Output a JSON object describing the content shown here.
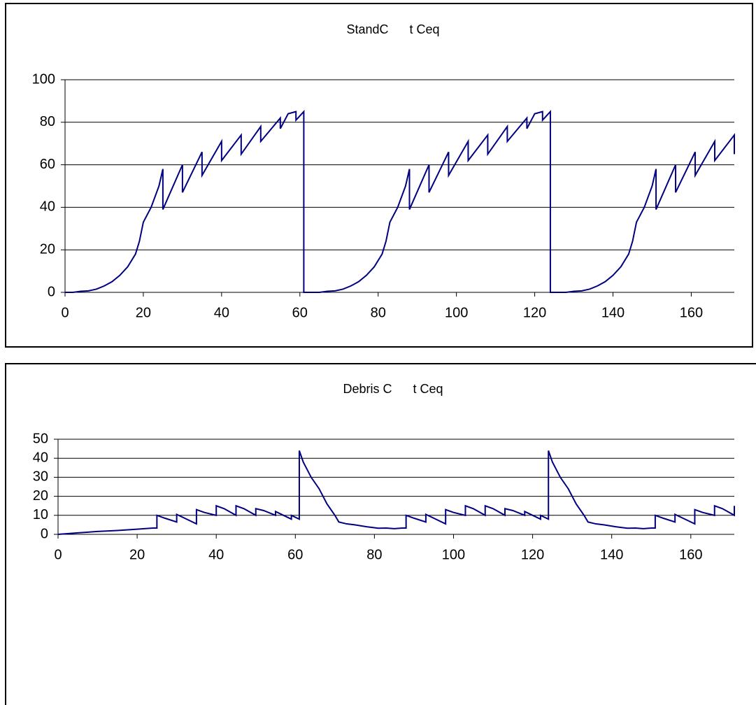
{
  "chart_data": [
    {
      "type": "line",
      "title": "StandC      t Ceq",
      "color": "#000080",
      "grid": true,
      "xlim": [
        0,
        171
      ],
      "ylim": [
        0,
        100
      ],
      "xticks": [
        0,
        20,
        40,
        60,
        80,
        100,
        120,
        140,
        160
      ],
      "yticks": [
        0,
        20,
        40,
        60,
        80,
        100
      ],
      "x": [
        0,
        2,
        4,
        6,
        8,
        10,
        12,
        14,
        16,
        18,
        19,
        20,
        22,
        24,
        25,
        25,
        30,
        30,
        35,
        35,
        40,
        40,
        45,
        45,
        50,
        50,
        55,
        55,
        57,
        59,
        59,
        61,
        61,
        63,
        65,
        67,
        69,
        71,
        73,
        75,
        77,
        79,
        81,
        82,
        83,
        85,
        87,
        88,
        88,
        93,
        93,
        98,
        98,
        103,
        103,
        108,
        108,
        113,
        113,
        118,
        118,
        120,
        122,
        122,
        124,
        124,
        126,
        128,
        130,
        132,
        134,
        136,
        138,
        140,
        142,
        144,
        145,
        146,
        148,
        150,
        151,
        151,
        156,
        156,
        161,
        161,
        166,
        166,
        171,
        171
      ],
      "values": [
        0,
        0,
        0.5,
        0.7,
        1.5,
        3,
        5,
        8,
        12,
        18,
        24,
        33,
        40,
        50,
        58,
        39,
        60,
        47,
        66,
        55,
        71,
        62,
        74,
        65,
        78,
        71,
        82,
        77,
        84,
        85,
        81,
        85,
        0,
        0,
        0,
        0.5,
        0.7,
        1.5,
        3,
        5,
        8,
        12,
        18,
        24,
        33,
        40,
        50,
        58,
        39,
        60,
        47,
        66,
        55,
        71,
        62,
        74,
        65,
        78,
        71,
        82,
        77,
        84,
        85,
        81,
        85,
        0,
        0,
        0,
        0.5,
        0.7,
        1.5,
        3,
        5,
        8,
        12,
        18,
        24,
        33,
        40,
        50,
        58,
        39,
        60,
        47,
        66,
        55,
        71,
        62,
        74,
        65
      ]
    },
    {
      "type": "line",
      "title": "Debris C      t Ceq",
      "color": "#000080",
      "grid": true,
      "xlim": [
        0,
        171
      ],
      "ylim": [
        0,
        50
      ],
      "xticks": [
        0,
        20,
        40,
        60,
        80,
        100,
        120,
        140,
        160
      ],
      "yticks": [
        0,
        10,
        20,
        30,
        40,
        50
      ],
      "x": [
        0,
        5,
        10,
        15,
        20,
        24,
        25,
        25,
        27,
        30,
        30,
        32,
        35,
        35,
        37,
        40,
        40,
        42,
        45,
        45,
        47,
        50,
        50,
        52,
        55,
        55,
        57,
        59,
        59,
        61,
        61,
        62,
        64,
        66,
        67,
        68,
        70,
        71,
        73,
        75,
        78,
        81,
        83,
        85,
        87,
        88,
        88,
        90,
        93,
        93,
        95,
        98,
        98,
        100,
        103,
        103,
        105,
        108,
        108,
        110,
        113,
        113,
        115,
        118,
        118,
        120,
        122,
        122,
        124,
        124,
        125,
        127,
        129,
        130,
        131,
        133,
        134,
        136,
        138,
        141,
        144,
        146,
        148,
        150,
        151,
        151,
        153,
        156,
        156,
        158,
        161,
        161,
        163,
        166,
        166,
        168,
        171,
        171
      ],
      "values": [
        0,
        0.8,
        1.5,
        2,
        2.7,
        3.3,
        3.3,
        10,
        8.5,
        6.5,
        10.5,
        8.5,
        5.5,
        13,
        11.5,
        10,
        15,
        13.5,
        10,
        15,
        13.5,
        10,
        13.5,
        12.5,
        10,
        12,
        10,
        8,
        10,
        8,
        44,
        38,
        30,
        24,
        20,
        16,
        10,
        6.5,
        5.5,
        5,
        4,
        3.2,
        3.3,
        3,
        3.3,
        3.3,
        10,
        8.5,
        6.5,
        10.5,
        8.5,
        5.5,
        13,
        11.5,
        10,
        15,
        13.5,
        10,
        15,
        13.5,
        10,
        13.5,
        12.5,
        10,
        12,
        10,
        8,
        10,
        8,
        44,
        38,
        30,
        24,
        20,
        16,
        10,
        6.5,
        5.5,
        5,
        4,
        3.2,
        3.3,
        3,
        3.3,
        3.3,
        10,
        8.5,
        6.5,
        10.5,
        8.5,
        5.5,
        13,
        11.5,
        10,
        15,
        13.5,
        10,
        15
      ]
    }
  ]
}
